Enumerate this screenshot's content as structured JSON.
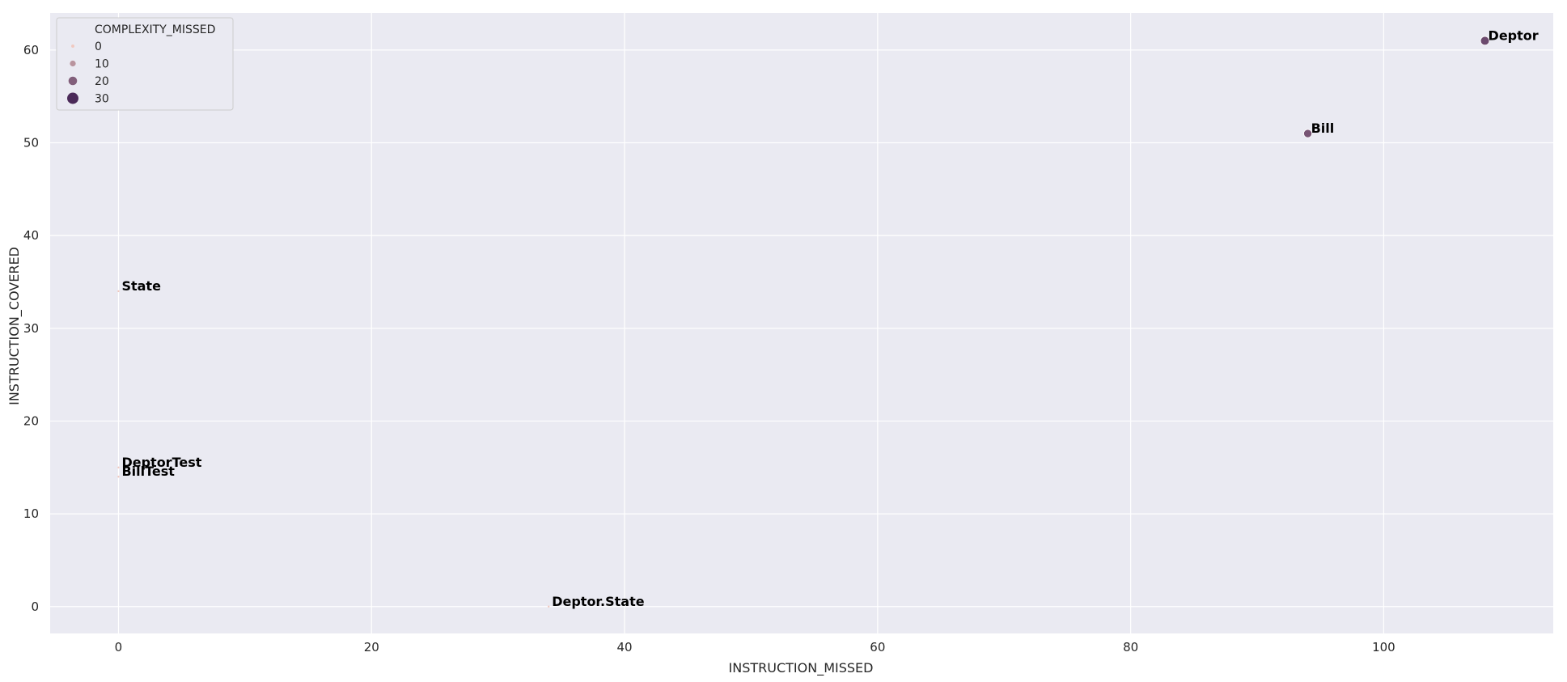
{
  "chart_data": {
    "type": "scatter",
    "xlabel": "INSTRUCTION_MISSED",
    "ylabel": "INSTRUCTION_COVERED",
    "xlim": [
      -5.4,
      113.4
    ],
    "ylim": [
      -2.9,
      64
    ],
    "xticks": [
      0,
      20,
      40,
      60,
      80,
      100
    ],
    "yticks": [
      0,
      10,
      20,
      30,
      40,
      50,
      60
    ],
    "grid": true,
    "legend": {
      "title": "COMPLEXITY_MISSED",
      "placement": "top-left",
      "entries": [
        {
          "label": "0",
          "value": 0
        },
        {
          "label": "10",
          "value": 10
        },
        {
          "label": "20",
          "value": 20
        },
        {
          "label": "30",
          "value": 30
        }
      ]
    },
    "color_scale": {
      "low": "#f0c9c0",
      "high": "#4b2a59"
    },
    "points": [
      {
        "label": "Deptor",
        "x": 108,
        "y": 61,
        "complexity": 24
      },
      {
        "label": "Bill",
        "x": 94,
        "y": 51,
        "complexity": 22
      },
      {
        "label": "State",
        "x": 0,
        "y": 34,
        "complexity": 0
      },
      {
        "label": "DeptorTest",
        "x": 0,
        "y": 15,
        "complexity": 0
      },
      {
        "label": "BillTest",
        "x": 0,
        "y": 14,
        "complexity": 0
      },
      {
        "label": "Deptor.State",
        "x": 34,
        "y": 0,
        "complexity": 0
      }
    ]
  }
}
